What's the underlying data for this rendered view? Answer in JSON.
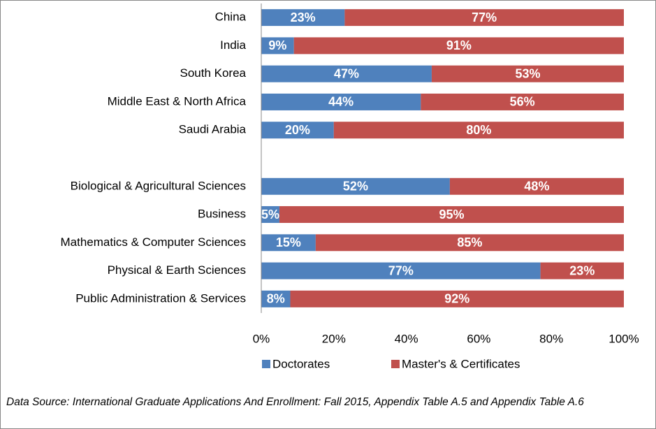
{
  "chart_data": {
    "type": "stacked_barh",
    "categories": [
      "China",
      "India",
      "South Korea",
      "Middle East & North Africa",
      "Saudi Arabia",
      null,
      "Biological & Agricultural Sciences",
      "Business",
      "Mathematics & Computer Sciences",
      "Physical & Earth Sciences",
      "Public Administration & Services"
    ],
    "series": [
      {
        "name": "Doctorates",
        "color": "#4f81bd",
        "values": [
          23,
          9,
          47,
          44,
          20,
          null,
          52,
          5,
          15,
          77,
          8
        ],
        "value_labels": [
          "23%",
          "9%",
          "47%",
          "44%",
          "20%",
          null,
          "52%",
          "5%",
          "15%",
          "77%",
          "8%"
        ]
      },
      {
        "name": "Master's & Certificates",
        "color": "#c0504d",
        "values": [
          77,
          91,
          53,
          56,
          80,
          null,
          48,
          95,
          85,
          23,
          92
        ],
        "value_labels": [
          "77%",
          "91%",
          "53%",
          "56%",
          "80%",
          null,
          "48%",
          "95%",
          "85%",
          "23%",
          "92%"
        ]
      }
    ],
    "xlim": [
      0,
      100
    ],
    "xticks": [
      {
        "value": 0,
        "label": "0%"
      },
      {
        "value": 20,
        "label": "20%"
      },
      {
        "value": 40,
        "label": "40%"
      },
      {
        "value": 60,
        "label": "60%"
      },
      {
        "value": 80,
        "label": "80%"
      },
      {
        "value": 100,
        "label": "100%"
      }
    ],
    "legend": "bottom",
    "source": "Data Source: International Graduate Applications And Enrollment: Fall 2015, Appendix Table A.5 and Appendix Table A.6"
  }
}
